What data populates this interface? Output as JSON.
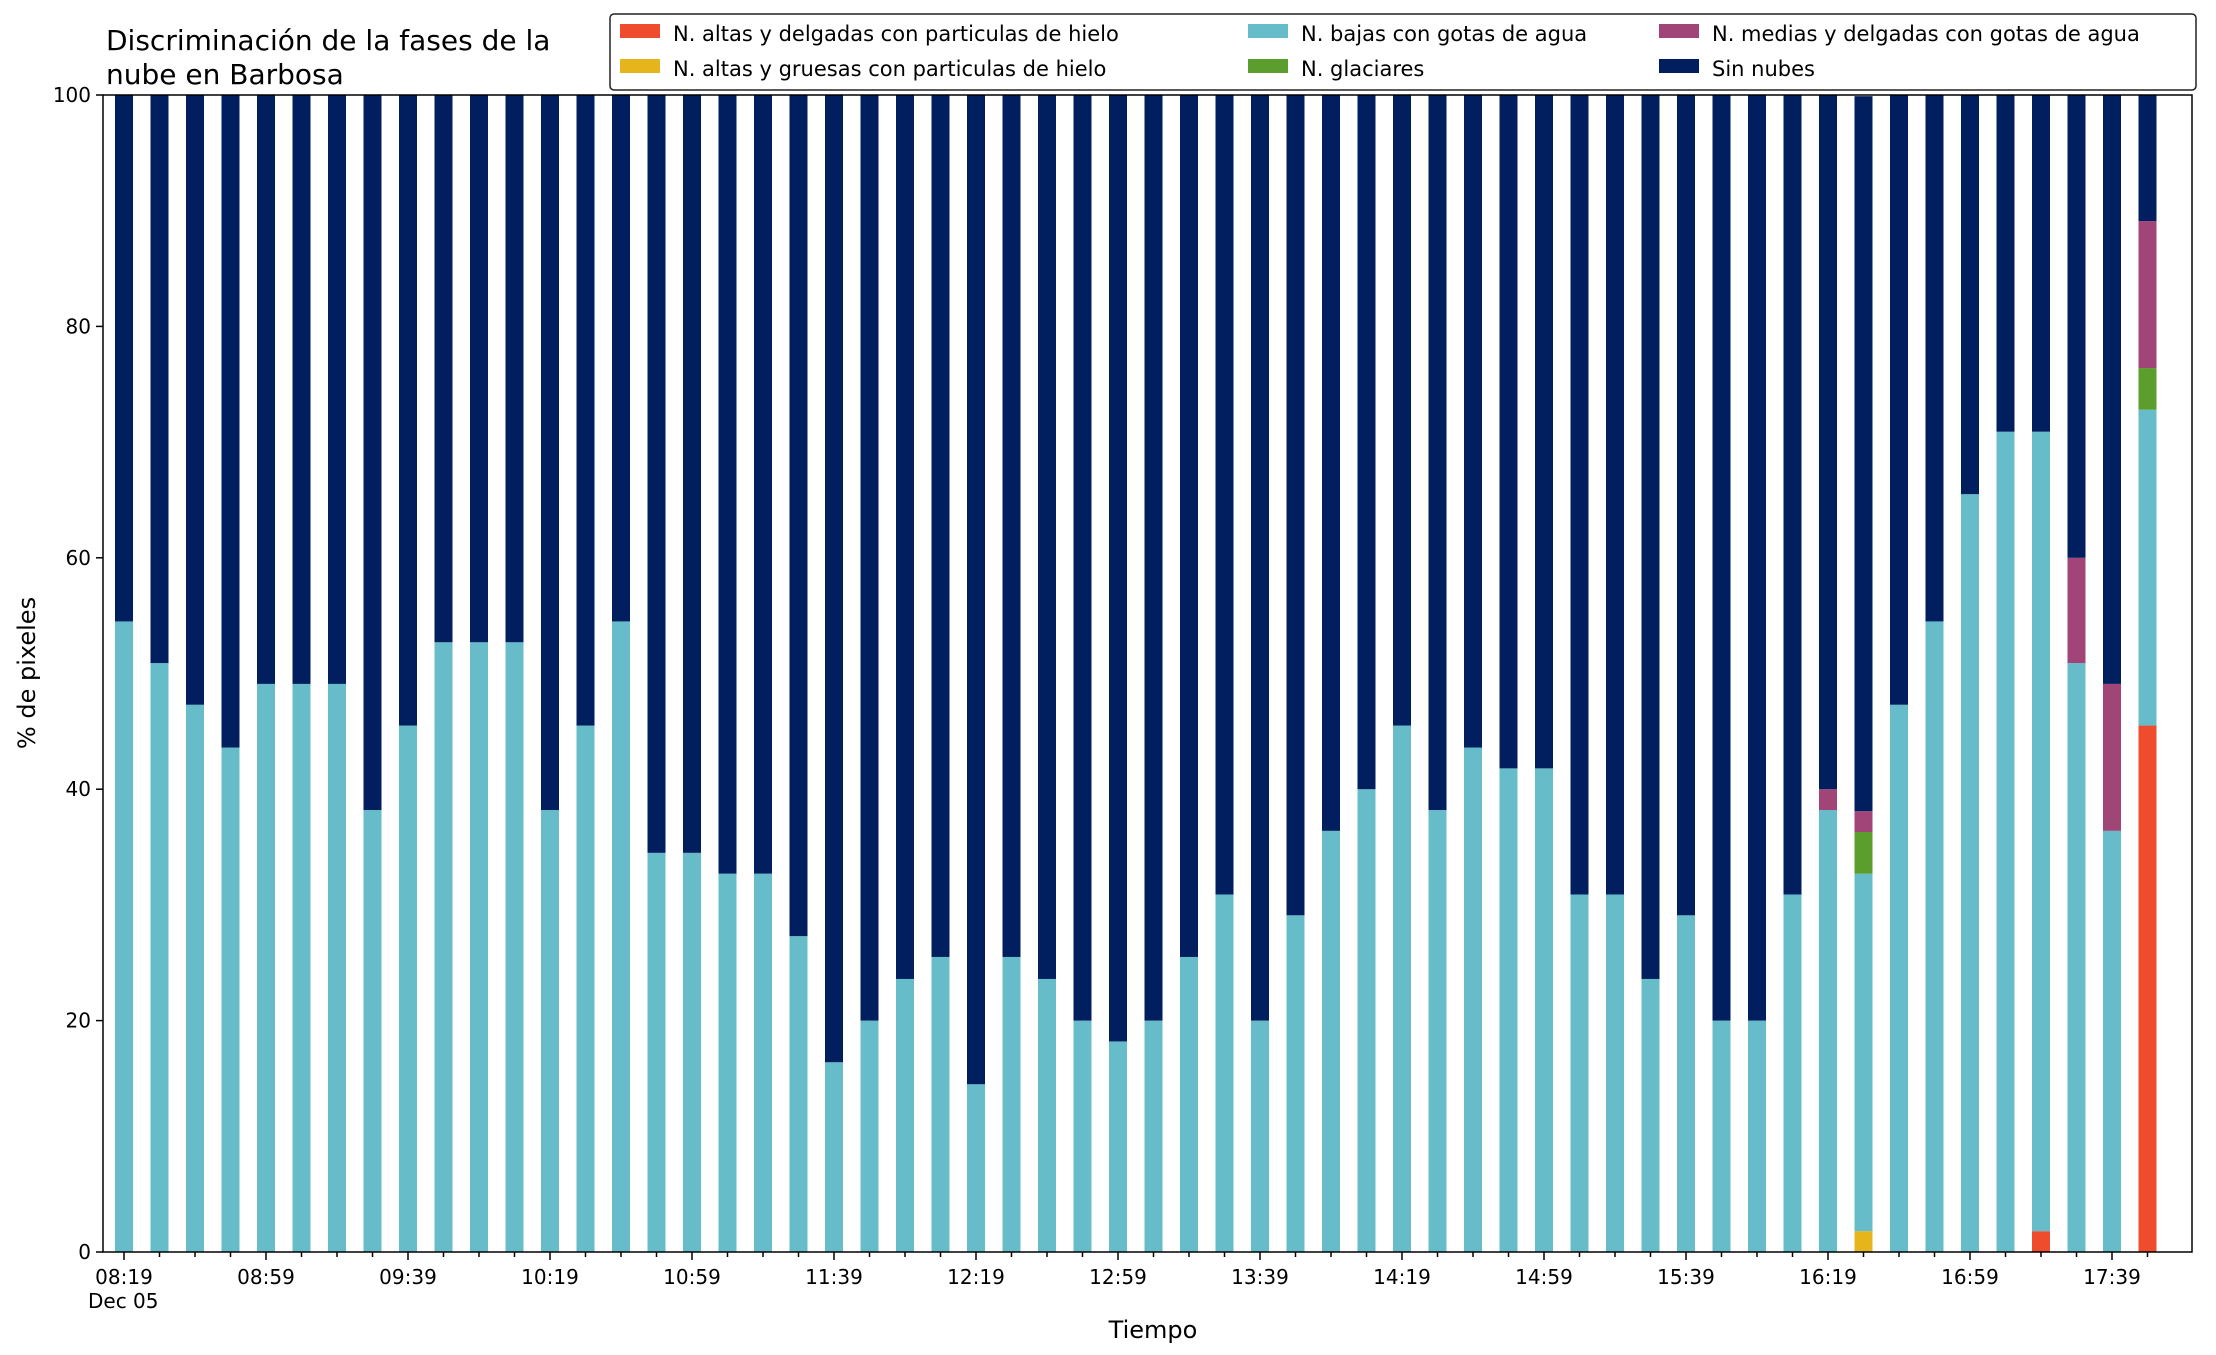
{
  "chart_data": {
    "type": "bar",
    "stacked": true,
    "title_lines": [
      "Discriminación de la fases de la",
      "nube en Barbosa"
    ],
    "xlabel": "Tiempo",
    "ylabel": "% de pixeles",
    "ylim": [
      0,
      100
    ],
    "yticks": [
      0,
      20,
      40,
      60,
      80,
      100
    ],
    "legend_position": "top-right",
    "x_date_label": "Dec 05",
    "x": [
      "08:19",
      "08:29",
      "08:39",
      "08:49",
      "08:59",
      "09:09",
      "09:19",
      "09:29",
      "09:39",
      "09:49",
      "09:59",
      "10:09",
      "10:19",
      "10:29",
      "10:39",
      "10:49",
      "10:59",
      "11:09",
      "11:19",
      "11:29",
      "11:39",
      "11:49",
      "11:59",
      "12:09",
      "12:19",
      "12:29",
      "12:39",
      "12:49",
      "12:59",
      "13:09",
      "13:19",
      "13:29",
      "13:39",
      "13:49",
      "13:59",
      "14:09",
      "14:19",
      "14:29",
      "14:39",
      "14:49",
      "14:59",
      "15:09",
      "15:19",
      "15:29",
      "15:39",
      "15:49",
      "15:59",
      "16:09",
      "16:19",
      "16:29",
      "16:39",
      "16:49",
      "16:59",
      "17:09",
      "17:19",
      "17:29",
      "17:39",
      "17:49"
    ],
    "x_tick_labels": [
      "08:19",
      "08:59",
      "09:39",
      "10:19",
      "10:59",
      "11:39",
      "12:19",
      "12:59",
      "13:39",
      "14:19",
      "14:59",
      "15:39",
      "16:19",
      "16:59",
      "17:39"
    ],
    "series": [
      {
        "name": "N. altas y delgadas con particulas de hielo",
        "color": "#ee4c2c",
        "values": [
          0,
          0,
          0,
          0,
          0,
          0,
          0,
          0,
          0,
          0,
          0,
          0,
          0,
          0,
          0,
          0,
          0,
          0,
          0,
          0,
          0,
          0,
          0,
          0,
          0,
          0,
          0,
          0,
          0,
          0,
          0,
          0,
          0,
          0,
          0,
          0,
          0,
          0,
          0,
          0,
          0,
          0,
          0,
          0,
          0,
          0,
          0,
          0,
          0,
          0,
          0,
          0,
          0,
          0,
          1.8,
          0,
          0,
          45.5
        ]
      },
      {
        "name": "N. altas y gruesas con particulas de hielo",
        "color": "#e6b51c",
        "values": [
          0,
          0,
          0,
          0,
          0,
          0,
          0,
          0,
          0,
          0,
          0,
          0,
          0,
          0,
          0,
          0,
          0,
          0,
          0,
          0,
          0,
          0,
          0,
          0,
          0,
          0,
          0,
          0,
          0,
          0,
          0,
          0,
          0,
          0,
          0,
          0,
          0,
          0,
          0,
          0,
          0,
          0,
          0,
          0,
          0,
          0,
          0,
          0,
          0,
          1.8,
          0,
          0,
          0,
          0,
          0,
          0,
          0,
          0
        ]
      },
      {
        "name": "N. bajas con gotas de agua",
        "color": "#66bdc9",
        "values": [
          54.5,
          50.9,
          47.3,
          43.6,
          49.1,
          49.1,
          49.1,
          38.2,
          45.5,
          52.7,
          52.7,
          52.7,
          38.2,
          45.5,
          54.5,
          34.5,
          34.5,
          32.7,
          32.7,
          27.3,
          16.4,
          20.0,
          23.6,
          25.5,
          14.5,
          25.5,
          23.6,
          20.0,
          18.2,
          20.0,
          25.5,
          30.9,
          20.0,
          29.1,
          36.4,
          40.0,
          45.5,
          38.2,
          43.6,
          41.8,
          41.8,
          30.9,
          30.9,
          23.6,
          29.1,
          20.0,
          20.0,
          30.9,
          38.2,
          30.9,
          47.3,
          54.5,
          65.5,
          70.9,
          69.1,
          50.9,
          36.4,
          27.3
        ]
      },
      {
        "name": "N. glaciares",
        "color": "#5c9e2e",
        "values": [
          0,
          0,
          0,
          0,
          0,
          0,
          0,
          0,
          0,
          0,
          0,
          0,
          0,
          0,
          0,
          0,
          0,
          0,
          0,
          0,
          0,
          0,
          0,
          0,
          0,
          0,
          0,
          0,
          0,
          0,
          0,
          0,
          0,
          0,
          0,
          0,
          0,
          0,
          0,
          0,
          0,
          0,
          0,
          0,
          0,
          0,
          0,
          0,
          0,
          3.6,
          0,
          0,
          0,
          0,
          0,
          0,
          0,
          3.6
        ]
      },
      {
        "name": "N. medias y delgadas con gotas de agua",
        "color": "#a14579",
        "values": [
          0,
          0,
          0,
          0,
          0,
          0,
          0,
          0,
          0,
          0,
          0,
          0,
          0,
          0,
          0,
          0,
          0,
          0,
          0,
          0,
          0,
          0,
          0,
          0,
          0,
          0,
          0,
          0,
          0,
          0,
          0,
          0,
          0,
          0,
          0,
          0,
          0,
          0,
          0,
          0,
          0,
          0,
          0,
          0,
          0,
          0,
          0,
          0,
          1.8,
          1.8,
          0,
          0,
          0,
          0,
          0,
          9.1,
          12.7,
          12.7
        ]
      },
      {
        "name": "Sin nubes",
        "color": "#011f5e",
        "values": [
          45.5,
          49.1,
          52.7,
          56.4,
          50.9,
          50.9,
          50.9,
          61.8,
          54.5,
          47.3,
          47.3,
          47.3,
          61.8,
          54.5,
          45.5,
          65.5,
          65.5,
          67.3,
          67.3,
          72.7,
          83.6,
          80.0,
          76.4,
          74.5,
          85.5,
          74.5,
          76.4,
          80.0,
          81.8,
          80.0,
          74.5,
          69.1,
          80.0,
          70.9,
          63.6,
          60.0,
          54.5,
          61.8,
          56.4,
          58.2,
          58.2,
          69.1,
          69.1,
          76.4,
          70.9,
          80.0,
          80.0,
          69.1,
          60.0,
          61.8,
          52.7,
          45.5,
          34.5,
          29.1,
          29.1,
          40.0,
          50.9,
          10.9
        ]
      }
    ]
  }
}
